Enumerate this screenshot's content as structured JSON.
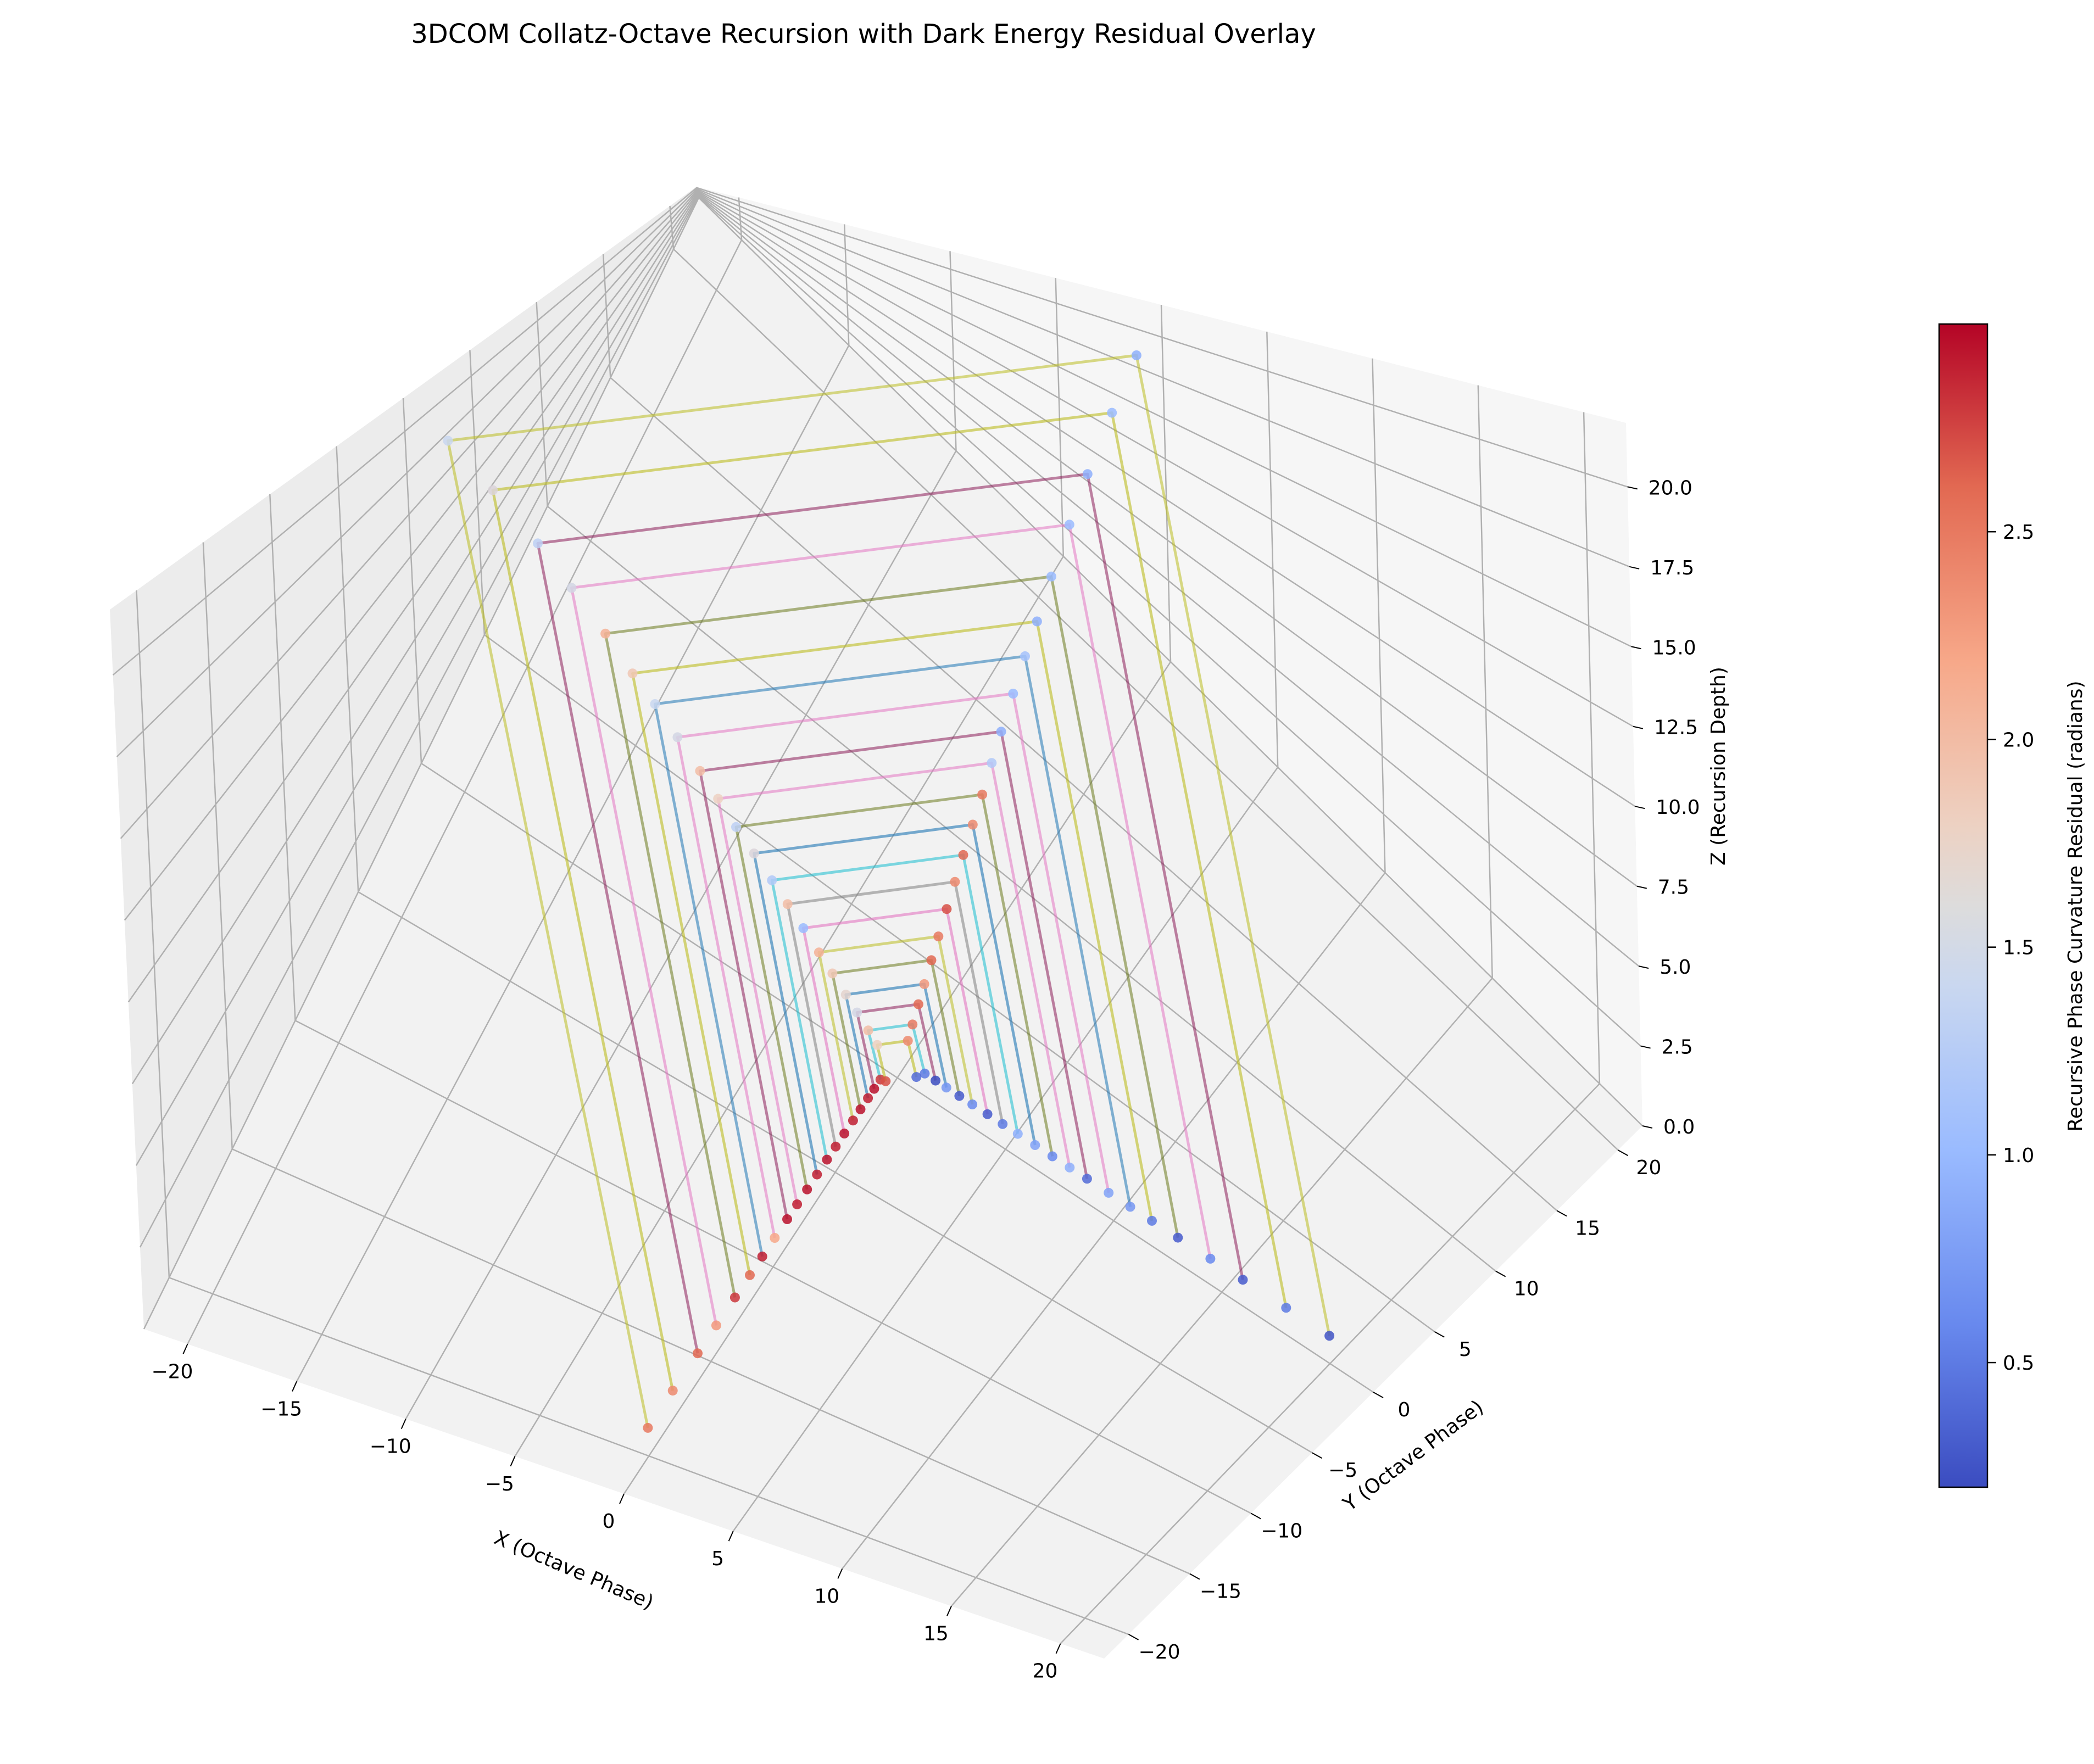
{
  "chart_data": {
    "type": "scatter",
    "projection": "3d",
    "title": "3DCOM Collatz-Octave Recursion with Dark Energy Residual Overlay",
    "xlabel": "X (Octave Phase)",
    "ylabel": "Y (Octave Phase)",
    "zlabel": "Z (Recursion Depth)",
    "xlim": [
      -22,
      22
    ],
    "ylim": [
      -22,
      22
    ],
    "zlim": [
      0,
      22
    ],
    "x_ticks": [
      -20,
      -15,
      -10,
      -5,
      0,
      5,
      10,
      15,
      20
    ],
    "y_ticks": [
      -20,
      -15,
      -10,
      -5,
      0,
      5,
      10,
      15,
      20
    ],
    "z_ticks": [
      0.0,
      2.5,
      5.0,
      7.5,
      10.0,
      12.5,
      15.0,
      17.5,
      20.0
    ],
    "x_tick_labels": [
      "−20",
      "−15",
      "−10",
      "−5",
      "0",
      "5",
      "10",
      "15",
      "20"
    ],
    "y_tick_labels": [
      "−20",
      "−15",
      "−10",
      "−5",
      "0",
      "5",
      "10",
      "15",
      "20"
    ],
    "z_tick_labels": [
      "0.0",
      "2.5",
      "5.0",
      "7.5",
      "10.0",
      "12.5",
      "15.0",
      "17.5",
      "20.0"
    ],
    "grid": true,
    "colorbar": {
      "label": "Recursive Phase Curvature Residual (radians)",
      "colormap": "coolwarm",
      "range": [
        0.2,
        3.0
      ],
      "ticks": [
        0.5,
        1.0,
        1.5,
        2.0,
        2.5
      ],
      "tick_labels": [
        "0.5",
        "1.0",
        "1.5",
        "2.0",
        "2.5"
      ],
      "colors": [
        "#3b4cc0",
        "#6889ee",
        "#9abbff",
        "#c9d7f0",
        "#edd1c2",
        "#f7a889",
        "#e26952",
        "#b40426"
      ]
    },
    "point_rule": "each trajectory visits (r,0,z) (0,r,z) (-r,0,z) (0,-r,z) per recursion level; residual is the colour value",
    "trajectories": [
      {
        "color": "#bcbd22",
        "points": [
          [
            20,
            0,
            1
          ],
          [
            0,
            20,
            20.5
          ],
          [
            -20,
            0,
            20.5
          ],
          [
            0,
            -20,
            1
          ]
        ],
        "residuals": [
          0.25,
          0.9,
          1.4,
          2.5
        ]
      },
      {
        "color": "#bcbd22",
        "alpha": 0.6,
        "points": [
          [
            18,
            0,
            1
          ],
          [
            0,
            18,
            18.7
          ],
          [
            -18,
            0,
            18.7
          ],
          [
            0,
            -18,
            1
          ]
        ],
        "residuals": [
          0.5,
          1.0,
          1.6,
          2.4
        ]
      },
      {
        "color": "#8c1d5a",
        "points": [
          [
            16,
            0,
            1
          ],
          [
            0,
            16,
            16.8
          ],
          [
            -16,
            0,
            16.8
          ],
          [
            0,
            -16,
            1
          ]
        ],
        "residuals": [
          0.3,
          0.9,
          1.3,
          2.6
        ]
      },
      {
        "color": "#e377c2",
        "points": [
          [
            14.5,
            0,
            1
          ],
          [
            0,
            14.5,
            15.2
          ],
          [
            -14.5,
            0,
            15.2
          ],
          [
            0,
            -14.5,
            1
          ]
        ],
        "residuals": [
          0.6,
          1.0,
          1.5,
          2.3
        ]
      },
      {
        "color": "#6b7a1e",
        "points": [
          [
            13,
            0,
            1
          ],
          [
            0,
            13,
            13.6
          ],
          [
            -13,
            0,
            13.6
          ],
          [
            0,
            -13,
            1
          ]
        ],
        "residuals": [
          0.3,
          1.0,
          2.1,
          2.8
        ]
      },
      {
        "color": "#bcbd22",
        "alpha": 0.6,
        "points": [
          [
            11.8,
            0,
            1
          ],
          [
            0,
            11.8,
            12.2
          ],
          [
            -11.8,
            0,
            12.2
          ],
          [
            0,
            -11.8,
            1
          ]
        ],
        "residuals": [
          0.5,
          0.9,
          1.9,
          2.6
        ]
      },
      {
        "color": "#1f77b4",
        "points": [
          [
            10.8,
            0,
            1
          ],
          [
            0,
            10.8,
            11.2
          ],
          [
            -10.8,
            0,
            11.2
          ],
          [
            0,
            -10.8,
            1
          ]
        ],
        "residuals": [
          0.7,
          1.1,
          1.4,
          2.9
        ]
      },
      {
        "color": "#e377c2",
        "points": [
          [
            9.8,
            0,
            1
          ],
          [
            0,
            9.8,
            10.1
          ],
          [
            -9.8,
            0,
            10.1
          ],
          [
            0,
            -9.8,
            1
          ]
        ],
        "residuals": [
          0.8,
          1.0,
          1.5,
          2.2
        ]
      },
      {
        "color": "#8c1d5a",
        "points": [
          [
            8.8,
            0,
            1
          ],
          [
            0,
            8.8,
            9.0
          ],
          [
            -8.8,
            0,
            9.0
          ],
          [
            0,
            -8.8,
            1
          ]
        ],
        "residuals": [
          0.4,
          0.9,
          2.0,
          2.95
        ]
      },
      {
        "color": "#e377c2",
        "points": [
          [
            8.0,
            0,
            1
          ],
          [
            0,
            8.0,
            8.1
          ],
          [
            -8.0,
            0,
            8.1
          ],
          [
            0,
            -8.0,
            1
          ]
        ],
        "residuals": [
          0.9,
          1.2,
          1.8,
          2.9
        ]
      },
      {
        "color": "#6b7a1e",
        "points": [
          [
            7.2,
            0,
            1
          ],
          [
            0,
            7.2,
            7.2
          ],
          [
            -7.2,
            0,
            7.2
          ],
          [
            0,
            -7.2,
            1
          ]
        ],
        "residuals": [
          0.6,
          2.5,
          1.3,
          2.95
        ]
      },
      {
        "color": "#1f77b4",
        "alpha": 0.6,
        "points": [
          [
            6.4,
            0,
            1
          ],
          [
            0,
            6.4,
            6.4
          ],
          [
            -6.4,
            0,
            6.4
          ],
          [
            0,
            -6.4,
            1
          ]
        ],
        "residuals": [
          0.8,
          2.4,
          1.6,
          2.9
        ]
      },
      {
        "color": "#17becf",
        "points": [
          [
            5.6,
            0,
            1
          ],
          [
            0,
            5.6,
            5.6
          ],
          [
            -5.6,
            0,
            5.6
          ],
          [
            0,
            -5.6,
            1
          ]
        ],
        "residuals": [
          0.9,
          2.6,
          1.2,
          2.95
        ]
      },
      {
        "color": "#7f7f7f",
        "points": [
          [
            4.9,
            0,
            1
          ],
          [
            0,
            4.9,
            4.9
          ],
          [
            -4.9,
            0,
            4.9
          ],
          [
            0,
            -4.9,
            1
          ]
        ],
        "residuals": [
          0.5,
          2.4,
          2.0,
          2.9
        ]
      },
      {
        "color": "#e377c2",
        "alpha": 0.6,
        "points": [
          [
            4.2,
            0,
            1
          ],
          [
            0,
            4.2,
            4.2
          ],
          [
            -4.2,
            0,
            4.2
          ],
          [
            0,
            -4.2,
            1
          ]
        ],
        "residuals": [
          0.3,
          2.7,
          1.0,
          2.95
        ]
      },
      {
        "color": "#bcbd22",
        "points": [
          [
            3.5,
            0,
            1
          ],
          [
            0,
            3.5,
            3.5
          ],
          [
            -3.5,
            0,
            3.5
          ],
          [
            0,
            -3.5,
            1
          ]
        ],
        "residuals": [
          0.6,
          2.5,
          2.1,
          2.9
        ]
      },
      {
        "color": "#6b7a1e",
        "points": [
          [
            2.9,
            0,
            1
          ],
          [
            0,
            2.9,
            2.9
          ],
          [
            -2.9,
            0,
            2.9
          ],
          [
            0,
            -2.9,
            1
          ]
        ],
        "residuals": [
          0.3,
          2.6,
          1.9,
          2.95
        ]
      },
      {
        "color": "#1f77b4",
        "alpha": 0.6,
        "points": [
          [
            2.3,
            0,
            1
          ],
          [
            0,
            2.3,
            2.3
          ],
          [
            -2.3,
            0,
            2.3
          ],
          [
            0,
            -2.3,
            1
          ]
        ],
        "residuals": [
          0.7,
          2.3,
          1.7,
          2.9
        ]
      },
      {
        "color": "#8c1d5a",
        "points": [
          [
            1.8,
            0,
            1
          ],
          [
            0,
            1.8,
            1.8
          ],
          [
            -1.8,
            0,
            1.8
          ],
          [
            0,
            -1.8,
            1
          ]
        ],
        "residuals": [
          0.2,
          2.6,
          1.5,
          2.95
        ]
      },
      {
        "color": "#17becf",
        "points": [
          [
            1.3,
            0,
            1
          ],
          [
            0,
            1.3,
            1.3
          ],
          [
            -1.3,
            0,
            1.3
          ],
          [
            0,
            -1.3,
            1
          ]
        ],
        "residuals": [
          0.5,
          2.5,
          2.0,
          2.8
        ]
      },
      {
        "color": "#bcbd22",
        "alpha": 0.6,
        "points": [
          [
            0.9,
            0,
            0.6
          ],
          [
            0,
            0.9,
            0.9
          ],
          [
            -0.9,
            0,
            0.9
          ],
          [
            0,
            -0.9,
            0.6
          ]
        ],
        "residuals": [
          0.4,
          2.4,
          1.8,
          2.7
        ]
      }
    ]
  }
}
